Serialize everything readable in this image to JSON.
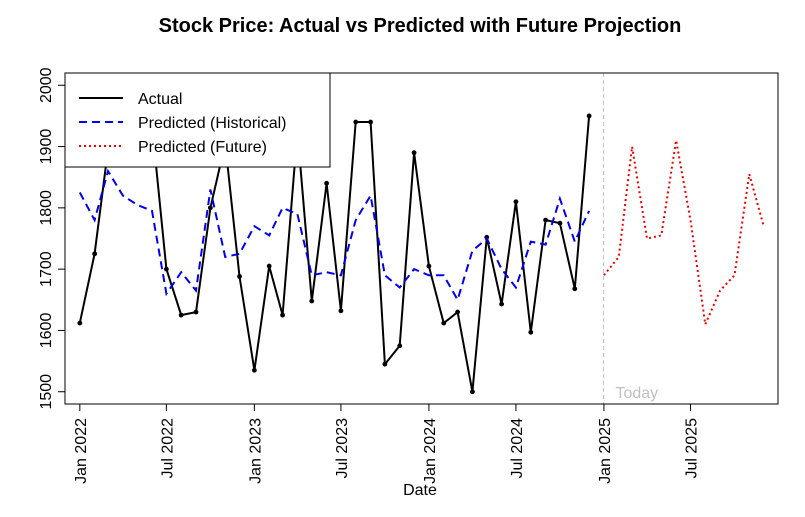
{
  "chart_data": {
    "type": "line",
    "title": "Stock Price: Actual vs Predicted with Future Projection",
    "xlabel": "Date",
    "ylabel": "",
    "xlim": [
      "2021-12-01",
      "2025-12-31"
    ],
    "ylim": [
      1480,
      2020
    ],
    "y_ticks": [
      1500,
      1600,
      1700,
      1800,
      1900,
      2000
    ],
    "x_ticks": [
      {
        "label": "Jan 2022",
        "date": "2022-01-01"
      },
      {
        "label": "Jul 2022",
        "date": "2022-07-01"
      },
      {
        "label": "Jan 2023",
        "date": "2023-01-01"
      },
      {
        "label": "Jul 2023",
        "date": "2023-07-01"
      },
      {
        "label": "Jan 2024",
        "date": "2024-01-01"
      },
      {
        "label": "Jul 2024",
        "date": "2024-07-01"
      },
      {
        "label": "Jan 2025",
        "date": "2025-01-01"
      },
      {
        "label": "Jul 2025",
        "date": "2025-07-01"
      }
    ],
    "today": {
      "date": "2024-12-31",
      "label": "Today",
      "color": "#c0c0c0"
    },
    "legend": {
      "position": "top-left"
    },
    "grid": false,
    "series": [
      {
        "name": "Actual",
        "color": "#000000",
        "style": "solid",
        "points": true,
        "x": [
          "2022-01-01",
          "2022-02-01",
          "2022-03-01",
          "2022-04-01",
          "2022-05-01",
          "2022-06-01",
          "2022-07-01",
          "2022-08-01",
          "2022-09-01",
          "2022-10-01",
          "2022-11-01",
          "2022-12-01",
          "2023-01-01",
          "2023-02-01",
          "2023-03-01",
          "2023-04-01",
          "2023-05-01",
          "2023-06-01",
          "2023-07-01",
          "2023-08-01",
          "2023-09-01",
          "2023-10-01",
          "2023-11-01",
          "2023-12-01",
          "2024-01-01",
          "2024-02-01",
          "2024-03-01",
          "2024-04-01",
          "2024-05-01",
          "2024-06-01",
          "2024-07-01",
          "2024-08-01",
          "2024-09-01",
          "2024-10-01",
          "2024-11-01",
          "2024-12-01"
        ],
        "y": [
          1612,
          1725,
          1895,
          1930,
          1950,
          1935,
          1700,
          1625,
          1630,
          1800,
          1905,
          1688,
          1535,
          1705,
          1625,
          1925,
          1648,
          1840,
          1632,
          1940,
          1940,
          1545,
          1575,
          1890,
          1705,
          1612,
          1630,
          1500,
          1752,
          1643,
          1810,
          1597,
          1780,
          1775,
          1668,
          1950
        ]
      },
      {
        "name": "Predicted (Historical)",
        "color": "#0000ee",
        "style": "dashed",
        "points": false,
        "x": [
          "2022-01-01",
          "2022-02-01",
          "2022-03-01",
          "2022-04-01",
          "2022-05-01",
          "2022-06-01",
          "2022-07-01",
          "2022-08-01",
          "2022-09-01",
          "2022-10-01",
          "2022-11-01",
          "2022-12-01",
          "2023-01-01",
          "2023-02-01",
          "2023-03-01",
          "2023-04-01",
          "2023-05-01",
          "2023-06-01",
          "2023-07-01",
          "2023-08-01",
          "2023-09-01",
          "2023-10-01",
          "2023-11-01",
          "2023-12-01",
          "2024-01-01",
          "2024-02-01",
          "2024-03-01",
          "2024-04-01",
          "2024-05-01",
          "2024-06-01",
          "2024-07-01",
          "2024-08-01",
          "2024-09-01",
          "2024-10-01",
          "2024-11-01",
          "2024-12-01"
        ],
        "y": [
          1825,
          1780,
          1860,
          1820,
          1805,
          1795,
          1660,
          1695,
          1665,
          1830,
          1720,
          1725,
          1770,
          1755,
          1800,
          1790,
          1690,
          1695,
          1690,
          1780,
          1820,
          1690,
          1670,
          1700,
          1690,
          1690,
          1650,
          1730,
          1750,
          1700,
          1670,
          1745,
          1740,
          1815,
          1745,
          1795
        ]
      },
      {
        "name": "Predicted (Future)",
        "color": "#ee0000",
        "style": "dotted",
        "points": false,
        "x": [
          "2025-01-01",
          "2025-02-01",
          "2025-03-01",
          "2025-04-01",
          "2025-05-01",
          "2025-06-01",
          "2025-07-01",
          "2025-08-01",
          "2025-09-01",
          "2025-10-01",
          "2025-11-01",
          "2025-12-01"
        ],
        "y": [
          1690,
          1720,
          1900,
          1750,
          1755,
          1910,
          1780,
          1610,
          1665,
          1690,
          1855,
          1770
        ]
      }
    ]
  }
}
